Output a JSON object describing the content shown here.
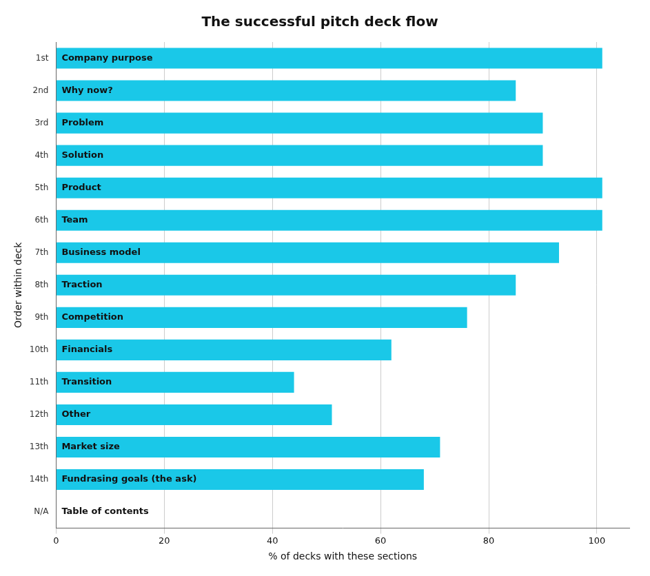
{
  "chart_data": {
    "type": "bar",
    "orientation": "horizontal",
    "title": "The successful pitch deck flow",
    "xlabel": "% of decks with these sections",
    "ylabel": "Order within deck",
    "categories": [
      "Company purpose",
      "Why now?",
      "Problem",
      "Solution",
      "Product",
      "Team",
      "Business model",
      "Traction",
      "Competition",
      "Financials",
      "Transition",
      "Other",
      "Market size",
      "Fundrasing goals (the ask)",
      "Table of contents"
    ],
    "order_labels": [
      "1st",
      "2nd",
      "3rd",
      "4th",
      "5th",
      "6th",
      "7th",
      "8th",
      "9th",
      "10th",
      "11th",
      "12th",
      "13th",
      "14th",
      "N/A"
    ],
    "values": [
      101,
      85,
      90,
      90,
      101,
      101,
      93,
      85,
      76,
      62,
      44,
      51,
      71,
      68,
      0
    ],
    "color": "#1ac8e8",
    "xlim": [
      0,
      106
    ],
    "xticks": [
      0,
      20,
      40,
      60,
      80,
      100
    ],
    "grid": true
  }
}
